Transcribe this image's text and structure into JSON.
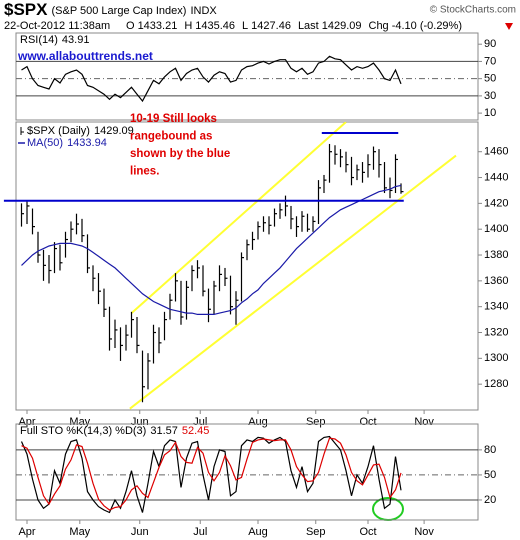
{
  "header": {
    "symbol": "$SPX",
    "name": "(S&P 500 Large Cap Index)",
    "exchange": "INDX",
    "source": "© StockCharts.com",
    "date": "22-Oct-2012 11:38am",
    "quote": [
      {
        "label": "O",
        "value": 1433.21
      },
      {
        "label": "H",
        "value": 1435.46
      },
      {
        "label": "L",
        "value": 1427.46
      },
      {
        "label": "Last",
        "value": 1429.09
      },
      {
        "label": "Chg",
        "value": "-4.10 (-0.29%)"
      }
    ]
  },
  "chart_data": [
    {
      "type": "line",
      "label": "RSI(14)",
      "note": "www.allabouttrends.net",
      "xlim": [
        -1,
        83
      ],
      "ylim": [
        2,
        103
      ],
      "yticks": [
        10,
        30,
        50,
        70,
        90
      ],
      "hlines": [
        30,
        70
      ],
      "dashed_hlines": [
        50
      ],
      "series": [
        {
          "color": "#000000",
          "values": [
            60,
            64,
            50,
            42,
            40,
            38,
            50,
            45,
            55,
            58,
            60,
            55,
            42,
            40,
            36,
            32,
            26,
            32,
            28,
            34,
            40,
            32,
            24,
            36,
            48,
            44,
            52,
            58,
            62,
            48,
            56,
            60,
            62,
            52,
            46,
            54,
            58,
            56,
            46,
            48,
            60,
            64,
            65,
            68,
            70,
            67,
            70,
            72,
            72,
            62,
            58,
            62,
            55,
            58,
            68,
            70,
            76,
            73,
            72,
            66,
            60,
            64,
            62,
            64,
            68,
            60,
            50,
            48,
            60,
            43.91
          ]
        }
      ]
    },
    {
      "type": "ohlc",
      "xlim": [
        -1,
        83
      ],
      "ylim": [
        1260,
        1483
      ],
      "yticks": [
        1280,
        1300,
        1320,
        1340,
        1360,
        1380,
        1400,
        1420,
        1440,
        1460
      ],
      "xticks": [
        {
          "value": 1,
          "label": "Apr"
        },
        {
          "value": 10.6,
          "label": "May"
        },
        {
          "value": 21.5,
          "label": "Jun"
        },
        {
          "value": 32.5,
          "label": "Jul"
        },
        {
          "value": 43,
          "label": "Aug"
        },
        {
          "value": 53.5,
          "label": "Sep"
        },
        {
          "value": 63,
          "label": "Oct"
        },
        {
          "value": 73.2,
          "label": "Nov"
        }
      ],
      "series": [
        {
          "name": "$SPX (Daily)",
          "color": "#000000",
          "high": [
            1420,
            1422,
            1416,
            1398,
            1384,
            1380,
            1390,
            1388,
            1398,
            1406,
            1412,
            1408,
            1396,
            1372,
            1366,
            1354,
            1340,
            1330,
            1324,
            1326,
            1336,
            1332,
            1306,
            1304,
            1326,
            1324,
            1336,
            1350,
            1366,
            1360,
            1360,
            1372,
            1376,
            1372,
            1354,
            1360,
            1372,
            1370,
            1364,
            1352,
            1382,
            1392,
            1398,
            1406,
            1410,
            1410,
            1416,
            1420,
            1426,
            1418,
            1410,
            1414,
            1412,
            1410,
            1438,
            1442,
            1466,
            1465,
            1462,
            1460,
            1456,
            1450,
            1452,
            1458,
            1464,
            1462,
            1452,
            1440,
            1458,
            1435.46
          ],
          "low": [
            1402,
            1404,
            1396,
            1374,
            1360,
            1358,
            1366,
            1368,
            1378,
            1390,
            1396,
            1390,
            1366,
            1352,
            1342,
            1332,
            1306,
            1308,
            1298,
            1306,
            1316,
            1304,
            1266,
            1276,
            1296,
            1304,
            1314,
            1330,
            1344,
            1326,
            1330,
            1352,
            1362,
            1348,
            1328,
            1334,
            1352,
            1356,
            1334,
            1326,
            1344,
            1376,
            1384,
            1392,
            1398,
            1396,
            1402,
            1408,
            1410,
            1400,
            1394,
            1398,
            1398,
            1398,
            1404,
            1428,
            1436,
            1450,
            1448,
            1444,
            1434,
            1438,
            1436,
            1440,
            1446,
            1440,
            1428,
            1424,
            1428,
            1427.46
          ],
          "close": [
            1412,
            1418,
            1402,
            1380,
            1372,
            1368,
            1385,
            1374,
            1392,
            1400,
            1404,
            1395,
            1370,
            1362,
            1352,
            1338,
            1315,
            1322,
            1310,
            1318,
            1330,
            1310,
            1278,
            1298,
            1320,
            1312,
            1330,
            1345,
            1360,
            1332,
            1355,
            1368,
            1370,
            1352,
            1338,
            1356,
            1365,
            1362,
            1340,
            1345,
            1378,
            1388,
            1392,
            1402,
            1405,
            1403,
            1412,
            1415,
            1418,
            1408,
            1402,
            1410,
            1400,
            1406,
            1432,
            1438,
            1460,
            1458,
            1456,
            1450,
            1440,
            1446,
            1444,
            1450,
            1460,
            1450,
            1432,
            1430,
            1454,
            1429.09
          ]
        },
        {
          "name": "MA(50)",
          "color": "#1a1aa8",
          "values": [
            1372,
            1376,
            1380,
            1383,
            1385,
            1387,
            1388,
            1389,
            1389,
            1389,
            1388,
            1387,
            1385,
            1382,
            1379,
            1376,
            1373,
            1370,
            1366,
            1362,
            1358,
            1354,
            1350,
            1347,
            1344,
            1342,
            1340,
            1338,
            1337,
            1336,
            1335,
            1335,
            1334,
            1334,
            1334,
            1334,
            1335,
            1336,
            1337,
            1339,
            1343,
            1346,
            1350,
            1353,
            1358,
            1362,
            1366,
            1370,
            1375,
            1380,
            1385,
            1389,
            1393,
            1397,
            1401,
            1405,
            1409,
            1412,
            1415,
            1417,
            1419,
            1421,
            1423,
            1425,
            1427,
            1429,
            1430,
            1431,
            1433,
            1433.94
          ]
        }
      ],
      "trendlines": [
        {
          "color": "#ffff33",
          "x": [
            20,
            59
          ],
          "y": [
            1335,
            1483
          ]
        },
        {
          "color": "#ffff33",
          "x": [
            19.7,
            79
          ],
          "y": [
            1261,
            1457
          ]
        },
        {
          "color": "#0000cc",
          "x": [
            -3.2,
            69.5
          ],
          "y": [
            1422,
            1422
          ]
        },
        {
          "color": "#0000cc",
          "x": [
            54.6,
            68.5
          ],
          "y": [
            1474.5,
            1474.5
          ]
        }
      ],
      "annotation": [
        "10-19 Still looks",
        "rangebound as",
        "shown by the blue",
        "lines."
      ],
      "annotation_color": "#e00000"
    },
    {
      "type": "line",
      "label": "Full STO %K(14,3) %D(3)",
      "xlim": [
        -1,
        83
      ],
      "ylim": [
        -4,
        111
      ],
      "yticks": [
        20,
        50,
        80
      ],
      "hlines": [
        20,
        80
      ],
      "dashed_hlines": [
        50
      ],
      "xticks": [
        {
          "value": 1,
          "label": "Apr"
        },
        {
          "value": 10.6,
          "label": "May"
        },
        {
          "value": 21.5,
          "label": "Jun"
        },
        {
          "value": 32.5,
          "label": "Jul"
        },
        {
          "value": 43,
          "label": "Aug"
        },
        {
          "value": 53.5,
          "label": "Sep"
        },
        {
          "value": 63,
          "label": "Oct"
        },
        {
          "value": 73.2,
          "label": "Nov"
        }
      ],
      "series": [
        {
          "color": "#000000",
          "values": [
            90,
            75,
            45,
            20,
            10,
            15,
            55,
            40,
            75,
            90,
            92,
            70,
            30,
            20,
            12,
            8,
            5,
            20,
            10,
            30,
            55,
            25,
            5,
            40,
            78,
            60,
            85,
            92,
            90,
            35,
            70,
            88,
            90,
            50,
            20,
            60,
            80,
            78,
            25,
            30,
            85,
            92,
            90,
            95,
            94,
            88,
            92,
            95,
            90,
            55,
            35,
            60,
            30,
            40,
            90,
            95,
            96,
            88,
            80,
            55,
            25,
            50,
            40,
            60,
            85,
            45,
            10,
            15,
            72,
            31.57
          ]
        },
        {
          "color": "#dd0000",
          "values": [
            85,
            82,
            70,
            47,
            25,
            15,
            27,
            37,
            57,
            68,
            86,
            84,
            64,
            40,
            21,
            13,
            8,
            11,
            12,
            20,
            32,
            37,
            28,
            23,
            41,
            59,
            74,
            79,
            89,
            72,
            65,
            64,
            83,
            76,
            53,
            43,
            53,
            73,
            61,
            44,
            47,
            69,
            89,
            92,
            93,
            92,
            91,
            92,
            92,
            80,
            60,
            50,
            42,
            43,
            53,
            75,
            94,
            93,
            88,
            74,
            53,
            43,
            38,
            50,
            62,
            63,
            47,
            23,
            32,
            52.45
          ]
        }
      ]
    }
  ]
}
